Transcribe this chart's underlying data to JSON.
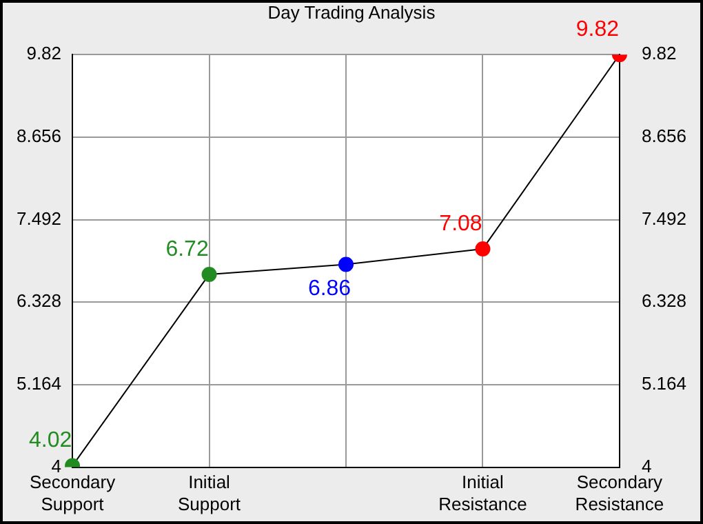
{
  "chart_data": {
    "type": "line",
    "title": "Day Trading Analysis",
    "categories": [
      "Secondary Support",
      "Initial Support",
      null,
      "Initial Resistance",
      "Secondary Resistance"
    ],
    "series": [
      {
        "color": "#000000",
        "colors": [
          "#228b22",
          "#228b22",
          "#0000ff",
          "#ff0000",
          "#ff0000"
        ],
        "values": [
          4.02,
          6.72,
          6.86,
          7.08,
          9.82
        ]
      }
    ],
    "ylim": [
      4,
      9.82
    ],
    "yticks": [
      4,
      5.164,
      6.328,
      7.492,
      8.656,
      9.82
    ],
    "y2lim": [
      4,
      9.82
    ],
    "y2ticks": [
      4,
      5.164,
      6.328,
      7.492,
      8.656,
      9.82
    ],
    "grid": true,
    "line_style": "solid",
    "marker": "circle",
    "data_labels": true,
    "legend": false
  }
}
